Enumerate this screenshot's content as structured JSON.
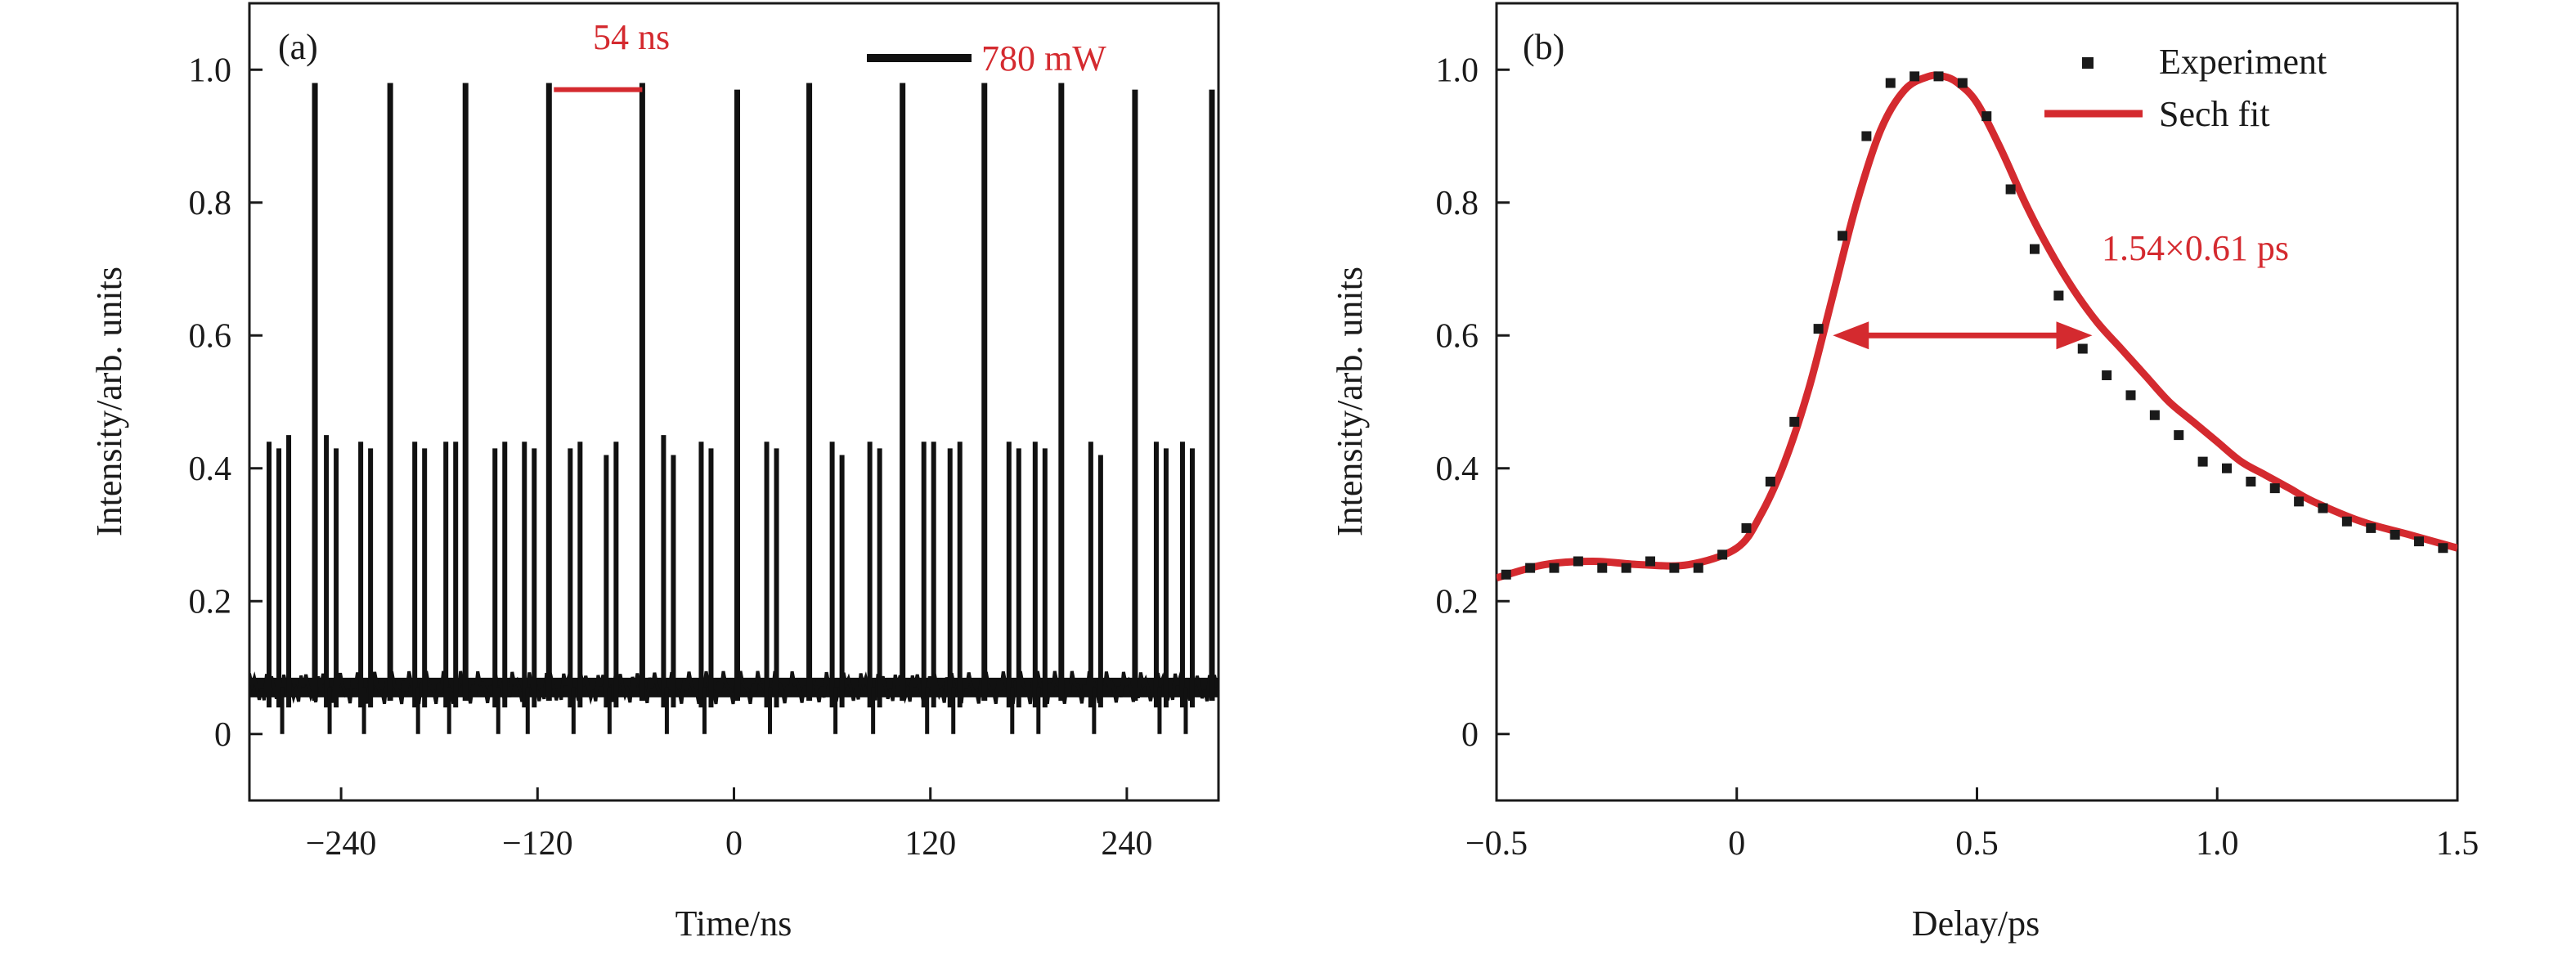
{
  "chart_data": [
    {
      "type": "line",
      "panel_label": "(a)",
      "xlabel": "Time/ns",
      "ylabel": "Intensity/arb. units",
      "xlim": [
        -296,
        296
      ],
      "ylim": [
        -0.1,
        1.1
      ],
      "x_ticks": [
        -240,
        -120,
        0,
        120,
        240
      ],
      "x_tick_labels": [
        "−240",
        "−120",
        "0",
        "120",
        "240"
      ],
      "y_ticks": [
        0,
        0.2,
        0.4,
        0.6,
        0.8,
        1.0
      ],
      "y_tick_labels": [
        "0",
        "0.2",
        "0.4",
        "0.6",
        "0.8",
        "1.0"
      ],
      "baseline": 0.07,
      "tall_pulse_times": [
        -256,
        -210,
        -164,
        -113,
        -56,
        2,
        46,
        103,
        153,
        200,
        245,
        292
      ],
      "tall_pulse_peaks": [
        0.98,
        0.98,
        0.98,
        0.98,
        0.98,
        0.97,
        0.98,
        0.98,
        0.98,
        0.98,
        0.97,
        0.97
      ],
      "short_pulse_times": [
        -284,
        -278,
        -272,
        -249,
        -243,
        -228,
        -222,
        -195,
        -189,
        -176,
        -170,
        -146,
        -140,
        -128,
        -122,
        -100,
        -94,
        -78,
        -72,
        -43,
        -37,
        -20,
        -14,
        20,
        26,
        60,
        66,
        83,
        89,
        116,
        122,
        132,
        138,
        168,
        174,
        184,
        190,
        218,
        224,
        258,
        264,
        274,
        280
      ],
      "short_pulse_peaks": [
        0.44,
        0.43,
        0.45,
        0.45,
        0.43,
        0.44,
        0.43,
        0.44,
        0.43,
        0.44,
        0.44,
        0.43,
        0.44,
        0.44,
        0.43,
        0.43,
        0.44,
        0.42,
        0.44,
        0.45,
        0.42,
        0.44,
        0.43,
        0.44,
        0.43,
        0.44,
        0.42,
        0.44,
        0.43,
        0.44,
        0.44,
        0.43,
        0.44,
        0.44,
        0.43,
        0.44,
        0.43,
        0.44,
        0.42,
        0.44,
        0.43,
        0.44,
        0.43
      ],
      "period_marker": {
        "from": -110,
        "to": -56,
        "y": 0.97,
        "label": "54 ns"
      },
      "legend": {
        "label": "780 mW",
        "color": "#111111",
        "position": "top-right"
      }
    },
    {
      "type": "scatter",
      "panel_label": "(b)",
      "xlabel": "Delay/ps",
      "ylabel": "Intensity/arb. units",
      "xlim": [
        -0.5,
        1.5
      ],
      "ylim": [
        -0.1,
        1.1
      ],
      "x_ticks": [
        -0.5,
        0,
        0.5,
        1.0,
        1.5
      ],
      "x_tick_labels": [
        "−0.5",
        "0",
        "0.5",
        "1.0",
        "1.5"
      ],
      "y_ticks": [
        0,
        0.2,
        0.4,
        0.6,
        0.8,
        1.0
      ],
      "y_tick_labels": [
        "0",
        "0.2",
        "0.4",
        "0.6",
        "0.8",
        "1.0"
      ],
      "series": [
        {
          "name": "Experiment",
          "marker": "square",
          "color": "#1a1a1a",
          "x": [
            -0.48,
            -0.43,
            -0.38,
            -0.33,
            -0.28,
            -0.23,
            -0.18,
            -0.13,
            -0.08,
            -0.03,
            0.02,
            0.07,
            0.12,
            0.17,
            0.22,
            0.27,
            0.32,
            0.37,
            0.42,
            0.47,
            0.52,
            0.57,
            0.62,
            0.67,
            0.72,
            0.77,
            0.82,
            0.87,
            0.92,
            0.97,
            1.02,
            1.07,
            1.12,
            1.17,
            1.22,
            1.27,
            1.32,
            1.37,
            1.42,
            1.47
          ],
          "y": [
            0.24,
            0.25,
            0.25,
            0.26,
            0.25,
            0.25,
            0.26,
            0.25,
            0.25,
            0.27,
            0.31,
            0.38,
            0.47,
            0.61,
            0.75,
            0.9,
            0.98,
            0.99,
            0.99,
            0.98,
            0.93,
            0.82,
            0.73,
            0.66,
            0.58,
            0.54,
            0.51,
            0.48,
            0.45,
            0.41,
            0.4,
            0.38,
            0.37,
            0.35,
            0.34,
            0.32,
            0.31,
            0.3,
            0.29,
            0.28
          ]
        },
        {
          "name": "Sech fit",
          "type": "line",
          "color": "#d42a2f",
          "x": [
            -0.5,
            -0.4,
            -0.3,
            -0.2,
            -0.1,
            0.0,
            0.05,
            0.1,
            0.15,
            0.2,
            0.25,
            0.3,
            0.35,
            0.4,
            0.43,
            0.46,
            0.5,
            0.55,
            0.6,
            0.65,
            0.7,
            0.75,
            0.8,
            0.85,
            0.9,
            0.95,
            1.0,
            1.05,
            1.1,
            1.15,
            1.2,
            1.3,
            1.4,
            1.5
          ],
          "y": [
            0.235,
            0.255,
            0.26,
            0.255,
            0.255,
            0.28,
            0.33,
            0.41,
            0.52,
            0.66,
            0.8,
            0.91,
            0.97,
            0.99,
            0.99,
            0.98,
            0.95,
            0.88,
            0.8,
            0.73,
            0.67,
            0.62,
            0.58,
            0.54,
            0.5,
            0.47,
            0.44,
            0.41,
            0.39,
            0.37,
            0.35,
            0.32,
            0.3,
            0.28
          ]
        }
      ],
      "fwhm_arrow": {
        "x_from": 0.2,
        "x_to": 0.74,
        "y": 0.6,
        "label": "1.54×0.61 ps"
      },
      "legend": {
        "position": "top-right"
      }
    }
  ]
}
